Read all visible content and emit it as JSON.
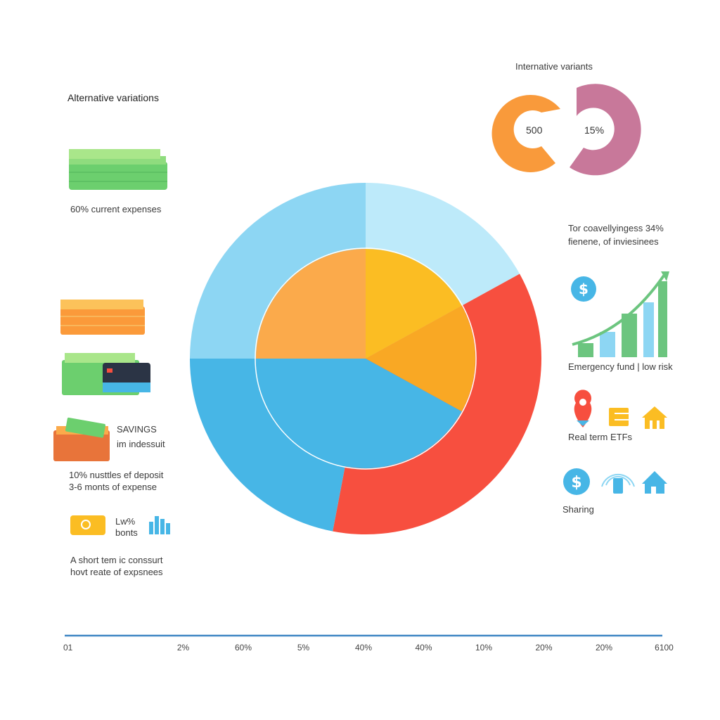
{
  "left": {
    "title": "Alternative variations",
    "item1": "60% current expenses",
    "savings_title": "SAVINGS",
    "savings_sub": "im indessuit",
    "deposit_line1": "10% nusttles ef deposit",
    "deposit_line2": "3-6 monts of expense",
    "bonds_title": "Lw%",
    "bonds_sub": "bonts",
    "short_line1": "A short tem ic conssurt",
    "short_line2": "hovt reate of expsnees"
  },
  "right": {
    "title": "Internative variants",
    "donut1_label": "500",
    "donut2_label": "15%",
    "desc_line1": "Tor coavellyingess 34%",
    "desc_line2": "fienene, of inviesinees",
    "emergency": "Emergency fund | low risk",
    "realterm": "Real term ETFs",
    "sharing": "Sharing"
  },
  "colors": {
    "light_blue": "#bdeafa",
    "sky_blue": "#8dd6f3",
    "blue": "#47b6e6",
    "red": "#f74f3f",
    "yellow": "#fbbd23",
    "orange": "#fbaa4b",
    "dark_orange": "#f9a824",
    "mauve": "#c8789a",
    "donut_orange": "#f99a3b",
    "axis": "#3f86c4",
    "green": "#6cc57f"
  },
  "chart_data": {
    "type": "pie",
    "outer_ring": {
      "values": [
        17,
        36,
        22,
        25
      ],
      "colors": [
        "#bdeafa",
        "#f74f3f",
        "#47b6e6",
        "#8dd6f3"
      ]
    },
    "inner_pie": {
      "values": [
        17,
        16,
        42,
        25
      ],
      "colors": [
        "#fbbd23",
        "#f9a824",
        "#47b6e6",
        "#fbaa4b"
      ]
    },
    "axis_tick_labels": [
      "01",
      "2%",
      "60%",
      "5%",
      "40%",
      "40%",
      "10%",
      "20%",
      "20%",
      "6100"
    ]
  }
}
